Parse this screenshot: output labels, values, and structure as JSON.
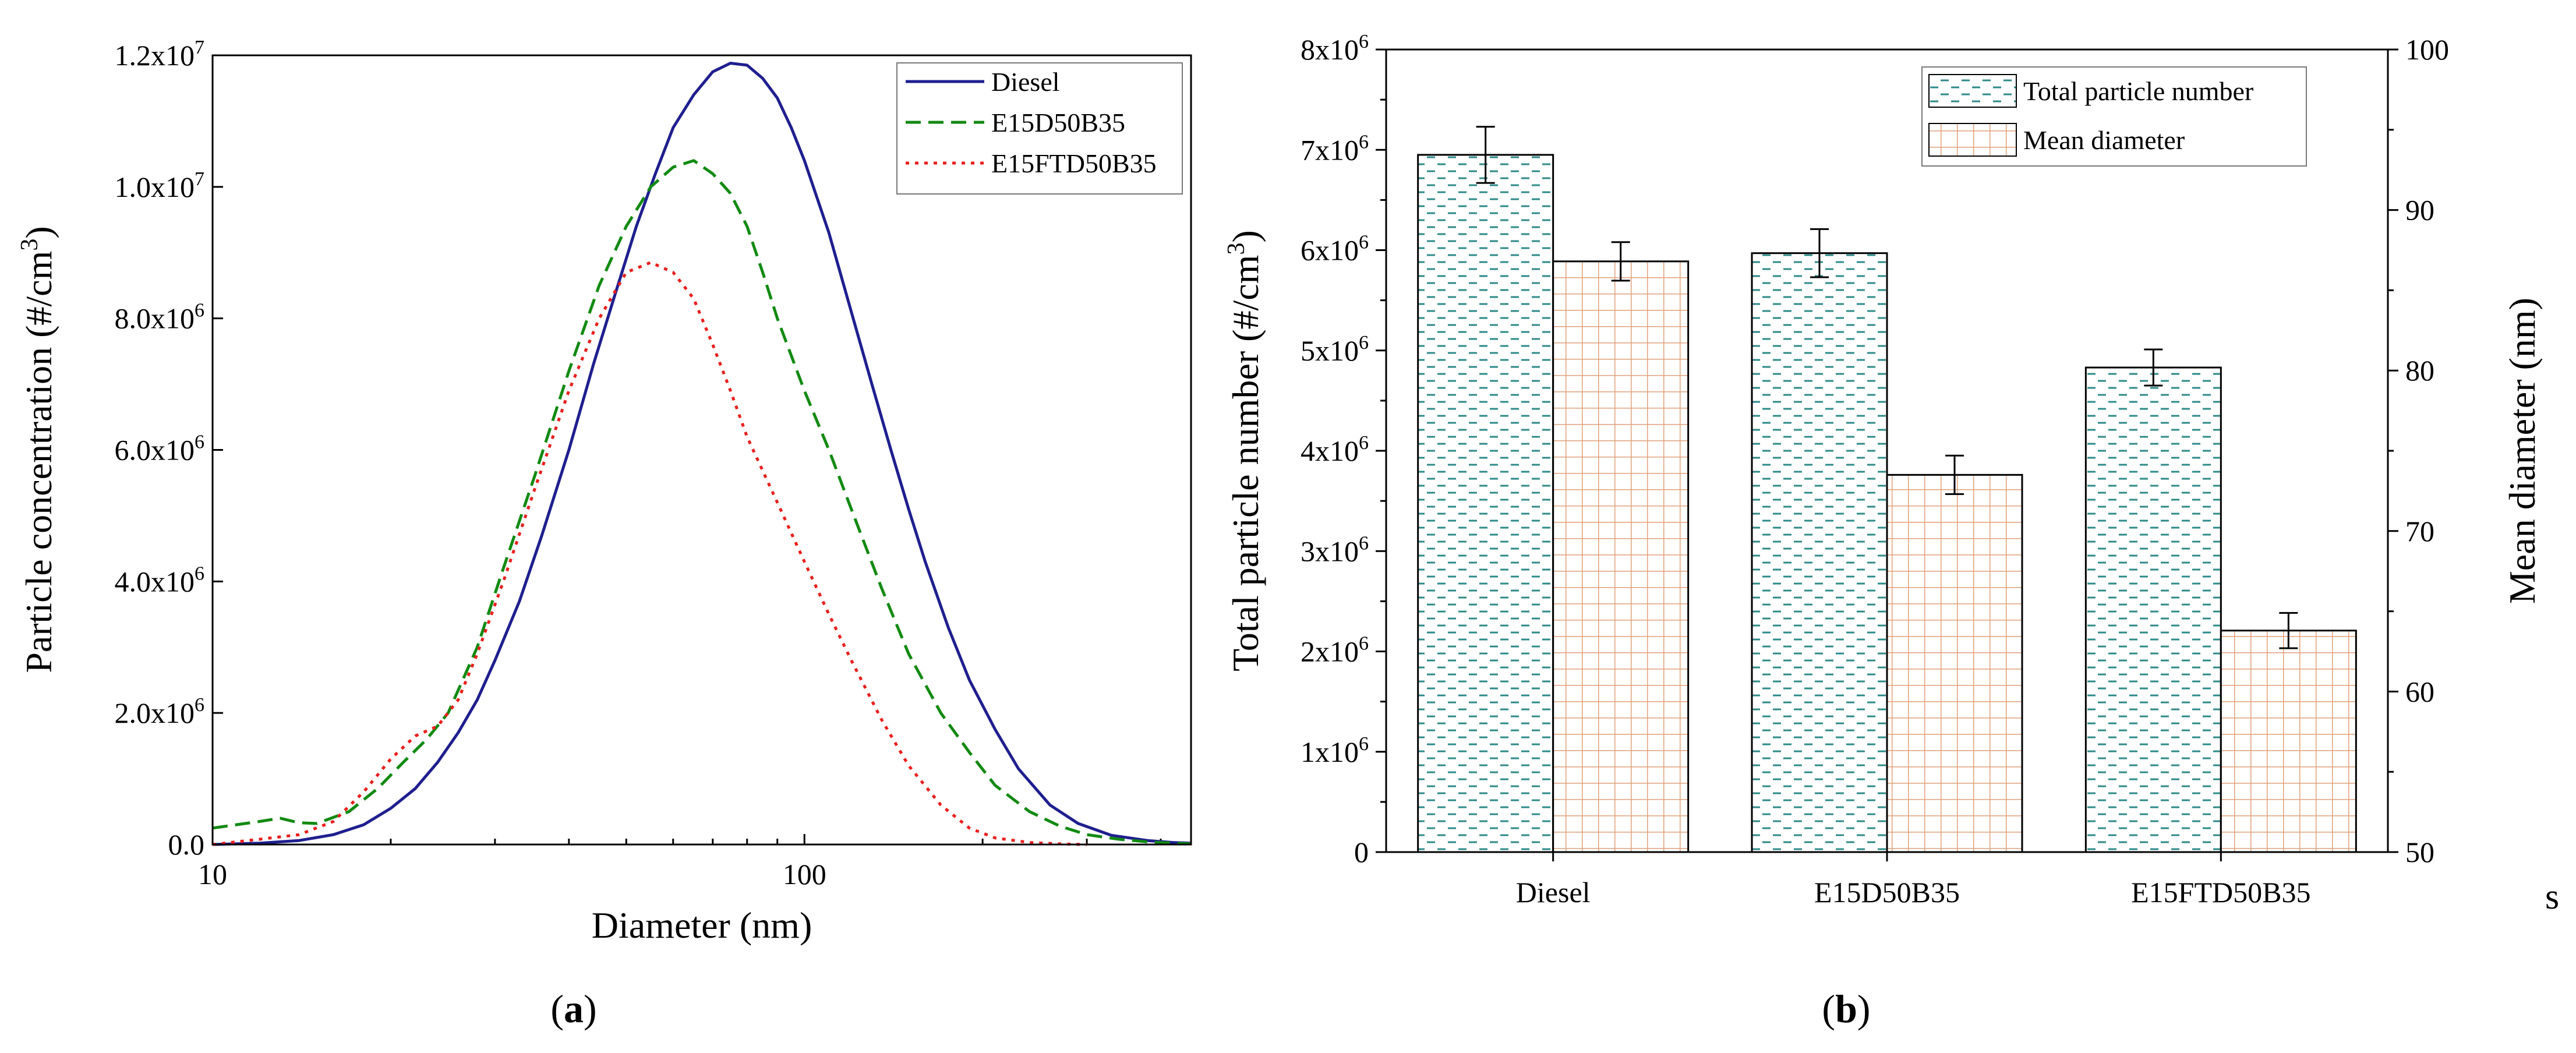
{
  "chart_data": [
    {
      "panel_label": "a",
      "type": "line",
      "xlabel": "Diameter (nm)",
      "ylabel": "Particle concentration (#/cm³)",
      "xscale": "log",
      "xlim": [
        10,
        450
      ],
      "ylim": [
        0,
        12000000
      ],
      "x_ticks": [
        {
          "v": 10,
          "label": "10"
        },
        {
          "v": 100,
          "label": "100"
        }
      ],
      "y_ticks": [
        {
          "v": 0,
          "label": "0.0"
        },
        {
          "v": 2000000,
          "label": "2.0x10",
          "exp": "6"
        },
        {
          "v": 4000000,
          "label": "4.0x10",
          "exp": "6"
        },
        {
          "v": 6000000,
          "label": "6.0x10",
          "exp": "6"
        },
        {
          "v": 8000000,
          "label": "8.0x10",
          "exp": "6"
        },
        {
          "v": 10000000,
          "label": "1.0x10",
          "exp": "7"
        },
        {
          "v": 12000000,
          "label": "1.2x10",
          "exp": "7"
        }
      ],
      "legend_position": "top-right",
      "series": [
        {
          "name": "Diesel",
          "color": "#1f1f8f",
          "style": "solid",
          "x": [
            10,
            12,
            14,
            16,
            18,
            20,
            22,
            24,
            26,
            28,
            30,
            33,
            36,
            40,
            44,
            48,
            52,
            56,
            60,
            65,
            70,
            75,
            80,
            85,
            90,
            95,
            100,
            110,
            120,
            130,
            140,
            150,
            160,
            175,
            190,
            210,
            230,
            260,
            290,
            330,
            380,
            420,
            450
          ],
          "y": [
            0,
            20000,
            60000,
            150000,
            300000,
            550000,
            850000,
            1250000,
            1700000,
            2200000,
            2800000,
            3700000,
            4700000,
            6000000,
            7300000,
            8400000,
            9400000,
            10200000,
            10900000,
            11400000,
            11750000,
            11880000,
            11850000,
            11650000,
            11350000,
            10900000,
            10400000,
            9300000,
            8100000,
            7000000,
            6000000,
            5100000,
            4300000,
            3300000,
            2500000,
            1750000,
            1150000,
            600000,
            320000,
            140000,
            60000,
            30000,
            20000
          ]
        },
        {
          "name": "E15D50B35",
          "color": "#128a12",
          "style": "dashed",
          "x": [
            10,
            12,
            13,
            14,
            15,
            17,
            19,
            21,
            23,
            25,
            28,
            31,
            35,
            40,
            45,
            50,
            55,
            60,
            65,
            70,
            75,
            80,
            85,
            90,
            100,
            110,
            120,
            135,
            150,
            170,
            190,
            210,
            240,
            270,
            300,
            340,
            380,
            420,
            450
          ],
          "y": [
            250000,
            350000,
            400000,
            330000,
            320000,
            500000,
            850000,
            1250000,
            1600000,
            2000000,
            3000000,
            4200000,
            5600000,
            7200000,
            8500000,
            9400000,
            10000000,
            10300000,
            10400000,
            10200000,
            9900000,
            9400000,
            8700000,
            8000000,
            6900000,
            6000000,
            5100000,
            3900000,
            2900000,
            2000000,
            1400000,
            900000,
            500000,
            280000,
            150000,
            80000,
            40000,
            20000,
            10000
          ]
        },
        {
          "name": "E15FTD50B35",
          "color": "#e8201e",
          "style": "dotted",
          "x": [
            10,
            12,
            14,
            16,
            18,
            20,
            22,
            24,
            26,
            28,
            31,
            35,
            40,
            45,
            50,
            55,
            60,
            65,
            70,
            75,
            80,
            90,
            100,
            110,
            120,
            135,
            150,
            170,
            190,
            210,
            240,
            270,
            300
          ],
          "y": [
            0,
            80000,
            150000,
            350000,
            800000,
            1300000,
            1650000,
            1800000,
            2200000,
            2900000,
            4000000,
            5400000,
            6900000,
            8000000,
            8700000,
            8850000,
            8700000,
            8300000,
            7600000,
            6900000,
            6200000,
            5200000,
            4300000,
            3500000,
            2800000,
            1900000,
            1200000,
            600000,
            250000,
            100000,
            30000,
            10000,
            0
          ]
        }
      ]
    },
    {
      "panel_label": "b",
      "type": "bar",
      "categories": [
        "Diesel",
        "E15D50B35",
        "E15FTD50B35"
      ],
      "ylabel": "Total particle number (#/cm³)",
      "ylabel_right": "Mean diameter (nm)",
      "ylim": [
        0,
        8000000
      ],
      "ylim_right": [
        50,
        100
      ],
      "y_ticks": [
        {
          "v": 0,
          "label": "0"
        },
        {
          "v": 1000000,
          "label": "1x10",
          "exp": "6"
        },
        {
          "v": 2000000,
          "label": "2x10",
          "exp": "6"
        },
        {
          "v": 3000000,
          "label": "3x10",
          "exp": "6"
        },
        {
          "v": 4000000,
          "label": "4x10",
          "exp": "6"
        },
        {
          "v": 5000000,
          "label": "5x10",
          "exp": "6"
        },
        {
          "v": 6000000,
          "label": "6x10",
          "exp": "6"
        },
        {
          "v": 7000000,
          "label": "7x10",
          "exp": "6"
        },
        {
          "v": 8000000,
          "label": "8x10",
          "exp": "6"
        }
      ],
      "y_ticks_right": [
        50,
        60,
        70,
        80,
        90,
        100
      ],
      "legend_position": "top-right",
      "series": [
        {
          "name": "Total particle number",
          "axis": "left",
          "color": "#2e8a88",
          "values": [
            6950000,
            5970000,
            4830000
          ],
          "errors": [
            280000,
            240000,
            180000
          ]
        },
        {
          "name": "Mean diameter",
          "axis": "right",
          "color": "#e0a07a",
          "values": [
            86.8,
            73.5,
            63.8
          ],
          "errors": [
            1.2,
            1.2,
            1.1
          ]
        }
      ]
    }
  ],
  "stray_text": "s"
}
